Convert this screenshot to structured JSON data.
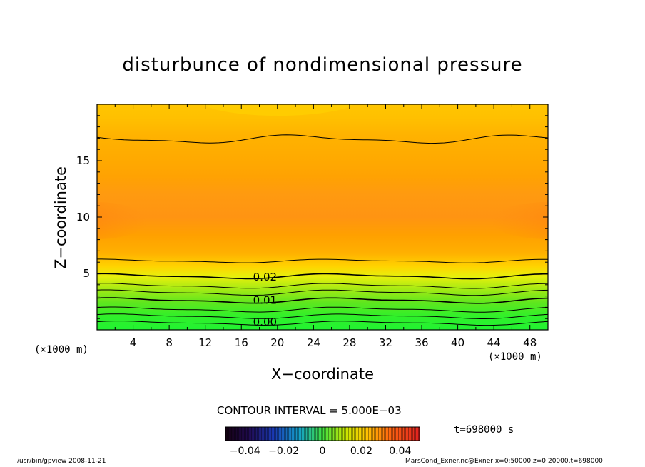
{
  "chart_data": {
    "type": "heatmap",
    "title": "disturbunce of nondimensional pressure",
    "xlabel": "X−coordinate",
    "ylabel": "Z−coordinate",
    "x_unit_label": "(×1000 m)",
    "xlim": [
      0,
      50
    ],
    "ylim": [
      0,
      20
    ],
    "x_ticks": [
      "4",
      "8",
      "12",
      "16",
      "20",
      "24",
      "28",
      "32",
      "36",
      "40",
      "44",
      "48"
    ],
    "y_ticks": [
      "5",
      "10",
      "15"
    ],
    "contour_interval_label": "CONTOUR INTERVAL = 5.000E−03",
    "contour_labels": [
      {
        "text": "0.02",
        "x": 17.3,
        "z": 4.75
      },
      {
        "text": "0.01",
        "x": 17.3,
        "z": 2.7
      },
      {
        "text": "0.00",
        "x": 17.3,
        "z": 0.75
      }
    ],
    "colorbar": {
      "min": -0.05,
      "max": 0.05,
      "tick_labels": [
        "−0.04",
        "−0.02",
        "0",
        "0.02",
        "0.04"
      ],
      "tick_values": [
        -0.04,
        -0.02,
        0,
        0.02,
        0.04
      ]
    },
    "grid": false
  },
  "time_label": "t=698000 s",
  "footer": {
    "left": "/usr/bin/gpview   2008-11-21",
    "right": "MarsCond_Exner.nc@Exner,x=0:50000,z=0:20000,t=698000"
  },
  "colors": {
    "green": "#00ff3c",
    "yellow": "#ffd800",
    "orange": "#ff9a10"
  }
}
